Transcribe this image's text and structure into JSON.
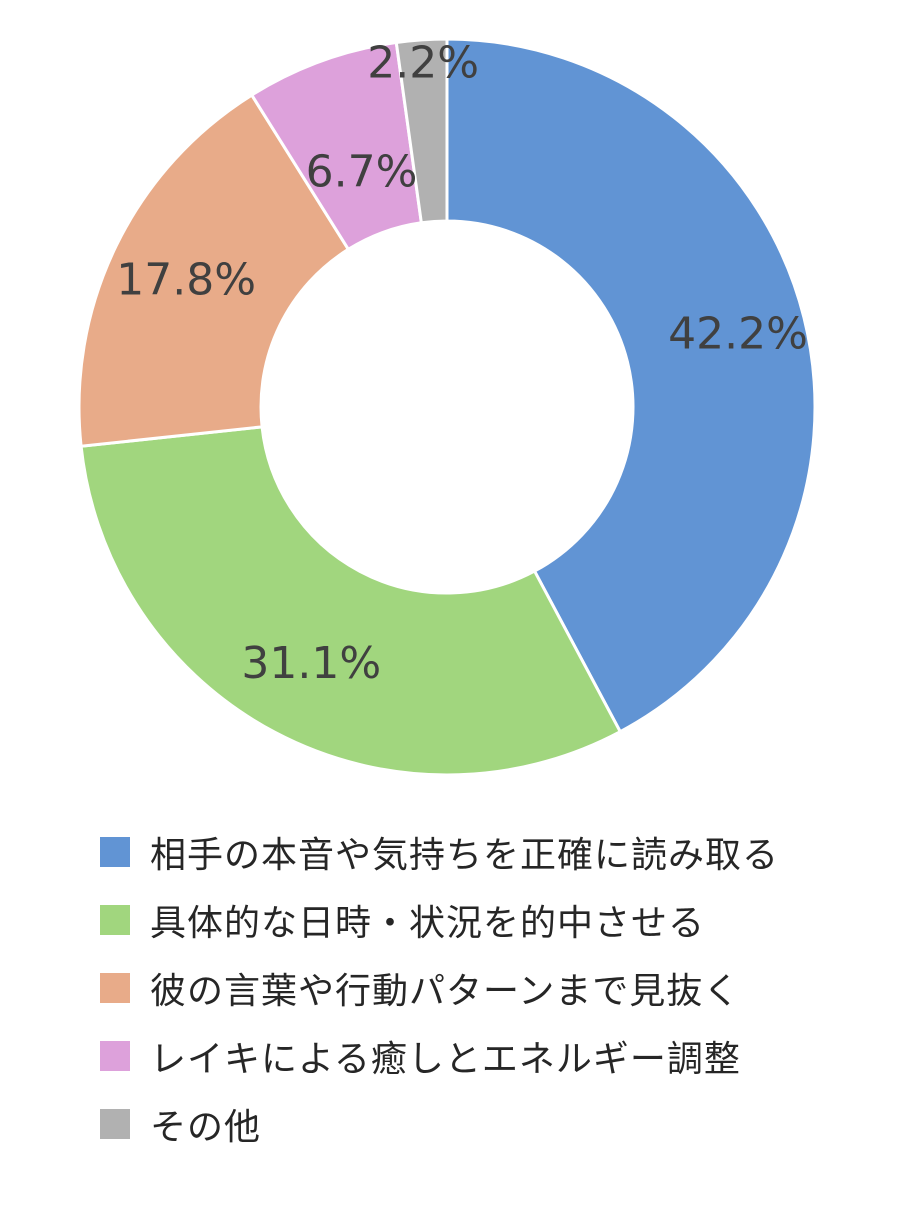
{
  "chart_data": {
    "type": "pie",
    "variant": "donut",
    "title": "",
    "categories": [
      "相手の本音や気持ちを正確に読み取る",
      "具体的な日時・状況を的中させる",
      "彼の言葉や行動パターンまで見抜く",
      "レイキによる癒しとエネルギー調整",
      "その他"
    ],
    "values": [
      42.2,
      31.1,
      17.8,
      6.7,
      2.2
    ],
    "labels": [
      "42.2%",
      "31.1%",
      "17.8%",
      "6.7%",
      "2.2%"
    ],
    "unit": "%",
    "colors": [
      "#6194d4",
      "#a1d67e",
      "#e8ab89",
      "#dda1db",
      "#b1b1b1"
    ],
    "legend_position": "bottom"
  }
}
